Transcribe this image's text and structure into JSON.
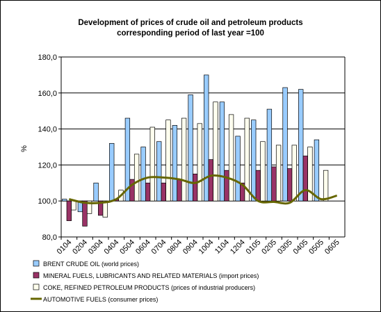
{
  "chart_data": {
    "type": "bar",
    "title": "Development of prices of crude oil and petroleum products",
    "subtitle": "corresponding period of last year =100",
    "ylabel": "%",
    "xlabel": "",
    "ylim": [
      80,
      180
    ],
    "ytick_values": [
      80,
      100,
      120,
      140,
      160,
      180
    ],
    "ytick_labels": [
      "80,0",
      "100,0",
      "120,0",
      "140,0",
      "160,0",
      "180,0"
    ],
    "grid": true,
    "legend_position": "bottom",
    "categories": [
      "0104",
      "0204",
      "0304",
      "0404",
      "0504",
      "0604",
      "0704",
      "0804",
      "0904",
      "1004",
      "1104",
      "1204",
      "0105",
      "0205",
      "0305",
      "0405",
      "0505",
      "0605"
    ],
    "series": [
      {
        "name": "BRENT CRUDE OIL (world prices)",
        "kind": "bar",
        "color": "#99ccff",
        "values": [
          101,
          94,
          110,
          132,
          146,
          130,
          133,
          142,
          159,
          170,
          155,
          136,
          145,
          151,
          163,
          162,
          134,
          null
        ]
      },
      {
        "name": "MINERAL FUELS, LUBRICANTS AND RELATED MATERIALS (import prices)",
        "kind": "bar",
        "color": "#993366",
        "values": [
          89,
          86,
          92,
          101,
          112,
          110,
          110,
          112,
          115,
          123,
          117,
          110,
          117,
          119,
          118,
          125,
          null,
          null
        ]
      },
      {
        "name": "COKE, REFINED PETROLEUM PRODUCTS (prices of industrial producers)",
        "kind": "bar",
        "color": "#ffffee",
        "values": [
          95,
          93,
          91,
          106,
          126,
          141,
          145,
          146,
          143,
          155,
          148,
          146,
          133,
          131,
          131,
          130,
          117,
          null
        ]
      },
      {
        "name": "AUTOMOTIVE FUELS (consumer prices)",
        "kind": "line",
        "color": "#666600",
        "values": [
          101,
          99,
          99,
          101,
          109,
          113,
          113,
          112,
          110,
          114,
          113,
          109,
          100,
          99.5,
          99,
          106,
          101,
          103
        ]
      }
    ]
  }
}
